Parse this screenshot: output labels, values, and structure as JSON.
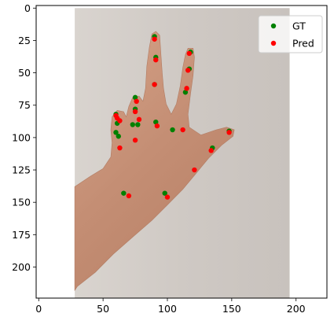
{
  "chart_data": {
    "type": "scatter",
    "title": "",
    "xlabel": "",
    "ylabel": "",
    "xlim": [
      -2,
      224
    ],
    "ylim": [
      224,
      -2
    ],
    "y_inverted": true,
    "x_ticks": [
      0,
      50,
      100,
      150,
      200
    ],
    "y_ticks": [
      0,
      25,
      50,
      75,
      100,
      125,
      150,
      175,
      200
    ],
    "grid": false,
    "legend_position": "top-right",
    "background_image": {
      "description": "photograph of a hand with index, middle and ring fingers raised against a light gray wall",
      "x_extent": [
        28,
        195
      ],
      "y_extent": [
        0,
        224
      ]
    },
    "series": [
      {
        "name": "GT",
        "color": "#008000",
        "points": [
          [
            90,
            22
          ],
          [
            91,
            38
          ],
          [
            90,
            59
          ],
          [
            91,
            88
          ],
          [
            118,
            34
          ],
          [
            117,
            47
          ],
          [
            114,
            65
          ],
          [
            104,
            94
          ],
          [
            75,
            69
          ],
          [
            75,
            78
          ],
          [
            77,
            90
          ],
          [
            73,
            90
          ],
          [
            60,
            82
          ],
          [
            61,
            89
          ],
          [
            60,
            96
          ],
          [
            62,
            99
          ],
          [
            148,
            95
          ],
          [
            135,
            108
          ],
          [
            66,
            143
          ],
          [
            98,
            143
          ]
        ]
      },
      {
        "name": "Pred",
        "color": "#ff0000",
        "points": [
          [
            90,
            24
          ],
          [
            91,
            40
          ],
          [
            90,
            59
          ],
          [
            92,
            91
          ],
          [
            117,
            35
          ],
          [
            116,
            48
          ],
          [
            115,
            62
          ],
          [
            112,
            94
          ],
          [
            76,
            72
          ],
          [
            75,
            80
          ],
          [
            78,
            86
          ],
          [
            75,
            102
          ],
          [
            60,
            83
          ],
          [
            61,
            85
          ],
          [
            63,
            87
          ],
          [
            63,
            108
          ],
          [
            148,
            96
          ],
          [
            134,
            110
          ],
          [
            121,
            125
          ],
          [
            70,
            145
          ],
          [
            100,
            146
          ]
        ]
      }
    ]
  }
}
